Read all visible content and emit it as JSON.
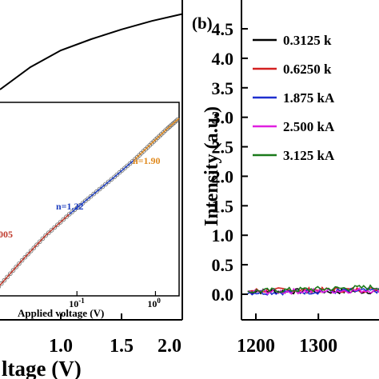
{
  "chart_data": [
    {
      "panel": "a",
      "type": "line",
      "xlabel": "ltage (V)",
      "xlim": [
        0.5,
        2.0
      ],
      "x_ticks": [
        "1.0",
        "1.5",
        "2.0"
      ],
      "x_tick_values": [
        1.0,
        1.5,
        2.0
      ],
      "series": [
        {
          "x": [
            0.5,
            0.75,
            1.0,
            1.25,
            1.5,
            1.75,
            2.0
          ],
          "values": [
            0.68,
            0.76,
            0.82,
            0.86,
            0.895,
            0.925,
            0.95
          ]
        }
      ],
      "inset": {
        "type": "scatter",
        "xlabel": "Applied voltage (V)",
        "x_scale": "log",
        "xlim": [
          0.01,
          2
        ],
        "x_ticks": [
          {
            "base": "10",
            "exp": "-1",
            "value": 0.1
          },
          {
            "base": "10",
            "exp": "0",
            "value": 1
          }
        ],
        "series": [
          {
            "x": [
              0.01,
              0.02,
              0.04,
              0.08
            ],
            "values": [
              0.05,
              0.2,
              0.34,
              0.46
            ],
            "color": "#c0392b"
          },
          {
            "x": [
              0.08,
              0.15,
              0.3,
              0.55
            ],
            "values": [
              0.46,
              0.56,
              0.67,
              0.77
            ],
            "color": "#1f3fbf"
          },
          {
            "x": [
              0.55,
              0.9,
              1.4,
              2.0
            ],
            "values": [
              0.77,
              0.86,
              0.94,
              1.0
            ],
            "color": "#e08a1e"
          }
        ],
        "annotations": [
          {
            "text": "n=1.90",
            "color": "#e08a1e"
          },
          {
            "text": "n=1.22",
            "color": "#1f3fbf"
          },
          {
            "text": "005",
            "color": "#c0392b"
          }
        ]
      }
    },
    {
      "panel": "b",
      "panel_label": "(b)",
      "type": "line",
      "ylabel": "Intensity (a.u.)",
      "ylim": [
        -0.3,
        4.6
      ],
      "y_ticks": [
        "0.0",
        "0.5",
        "1.0",
        "1.5",
        "2.0",
        "2.5",
        "3.0",
        "3.5",
        "4.0",
        "4.5"
      ],
      "y_tick_values": [
        0.0,
        0.5,
        1.0,
        1.5,
        2.0,
        2.5,
        3.0,
        3.5,
        4.0,
        4.5
      ],
      "xlim": [
        1200,
        1420
      ],
      "x_ticks": [
        "1200",
        "1300"
      ],
      "x_tick_values": [
        1200,
        1300
      ],
      "legend_position": "top-right",
      "series": [
        {
          "name": "0.3125 k",
          "color": "#000000",
          "x": [
            1210,
            1420
          ],
          "values": [
            0.05,
            0.05
          ]
        },
        {
          "name": "0.6250 k",
          "color": "#d42020",
          "x": [
            1210,
            1420
          ],
          "values": [
            0.06,
            0.08
          ]
        },
        {
          "name": "1.875 kA",
          "color": "#1f2fcf",
          "x": [
            1210,
            1420
          ],
          "values": [
            0.03,
            0.06
          ]
        },
        {
          "name": "2.500 kA",
          "color": "#e020e0",
          "x": [
            1210,
            1420
          ],
          "values": [
            0.04,
            0.07
          ]
        },
        {
          "name": "3.125 kA",
          "color": "#1a7a1a",
          "x": [
            1210,
            1420
          ],
          "values": [
            0.05,
            0.12
          ]
        }
      ]
    }
  ]
}
